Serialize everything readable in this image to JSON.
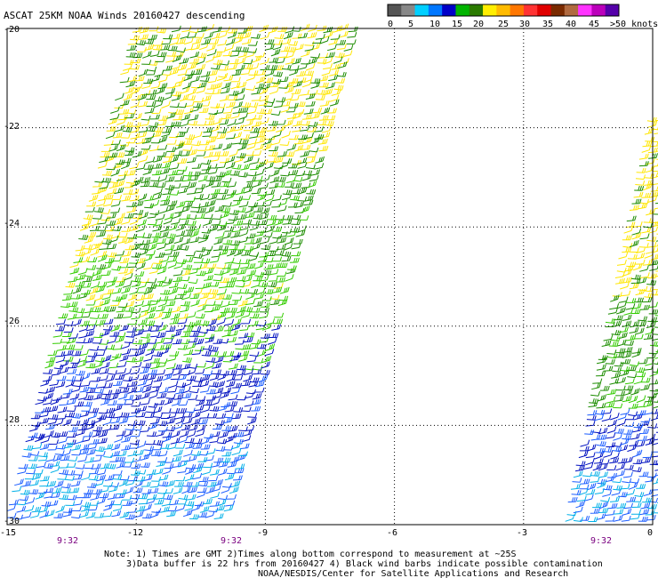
{
  "title": "ASCAT 25KM NOAA Winds 20160427 descending",
  "colorbar": {
    "colors": [
      "#555555",
      "#888888",
      "#00cfff",
      "#0077ff",
      "#0000c8",
      "#00b400",
      "#2a7a00",
      "#ffee00",
      "#ffbb00",
      "#ff7700",
      "#ff3333",
      "#e00000",
      "#7a2a00",
      "#b06a40",
      "#ff33ff",
      "#bb00bb",
      "#5500aa"
    ],
    "tick_labels": [
      "0",
      "5",
      "10",
      "15",
      "20",
      "25",
      "30",
      "35",
      "40",
      "45",
      ">50 knots"
    ]
  },
  "map": {
    "lon_range": [
      -15,
      0
    ],
    "lat_range": [
      -30,
      -20
    ],
    "x_tick_labels": [
      "-15",
      "-12",
      "-9",
      "-6",
      "-3",
      "0"
    ],
    "y_tick_labels": [
      "-20",
      "-22",
      "-24",
      "-26",
      "-28",
      "-30"
    ],
    "grid": "dotted"
  },
  "swaths": [
    {
      "name": "swath-west",
      "time_label": "9:32",
      "time_label_2": "9:32"
    },
    {
      "name": "swath-east",
      "time_label": "9:32"
    }
  ],
  "notes": {
    "line1": "Note: 1) Times are GMT 2)Times along bottom correspond to measurement at ~25S",
    "line2": "3)Data buffer is 22 hrs from 20160427 4) Black wind barbs indicate possible contamination",
    "line3": "NOAA/NESDIS/Center for Satellite Applications and Research"
  },
  "legend_colors": {
    "yellow": "#ffe600",
    "dark_green": "#1c8c00",
    "green": "#33cc00",
    "blue": "#0010c0",
    "mid_blue": "#1a5cff",
    "cyan": "#00b0e8"
  }
}
